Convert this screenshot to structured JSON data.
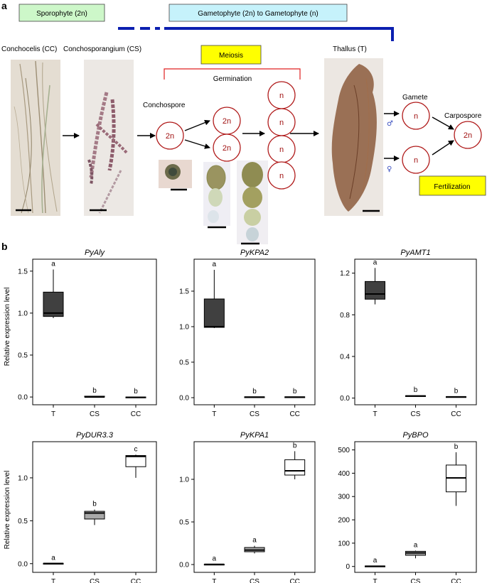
{
  "panel_a": {
    "letter": "a",
    "phase_sporophyte": "Sporophyte (2n)",
    "phase_gametophyte": "Gametophyte (2n) to Gametophyte (n)",
    "label_conchocelis": "Conchocelis (CC)",
    "label_conchosporangium": "Conchosporangium (CS)",
    "label_thallus": "Thallus (T)",
    "label_meiosis": "Meiosis",
    "label_germination": "Germination",
    "label_conchospore": "Conchospore",
    "label_gamete": "Gamete",
    "label_carpospore": "Carpospore",
    "label_fertilization": "Fertilization",
    "cell_2n": "2n",
    "cell_n": "n",
    "male_symbol": "♂",
    "female_symbol": "♀",
    "colors": {
      "sporophyte_box": "#cdf7c9",
      "gametophyte_box": "#c6f2fb",
      "meiosis_box": "#ffff00",
      "timeline": "#0b1fb0",
      "cell_border": "#b01a1a",
      "bracket": "#e02020"
    }
  },
  "panel_b": {
    "letter": "b",
    "ylabel": "Relative expression level",
    "chart_data": [
      {
        "type": "box",
        "title": "PyAly",
        "categories": [
          "T",
          "CS",
          "CC"
        ],
        "ylim": [
          -0.05,
          1.6
        ],
        "yticks": [
          0.0,
          0.5,
          1.0,
          1.5
        ],
        "ytick_labels": [
          "0.0",
          "0.5",
          "1.0",
          "1.5"
        ],
        "boxes": [
          {
            "whisker_low": 0.94,
            "q1": 0.96,
            "median": 1.0,
            "q3": 1.25,
            "whisker_high": 1.52,
            "fill": "#404040",
            "letter": "a"
          },
          {
            "whisker_low": 0.0,
            "q1": 0.0,
            "median": 0.0,
            "q3": 0.01,
            "whisker_high": 0.01,
            "fill": "#a8a8a8",
            "letter": "b"
          },
          {
            "whisker_low": -0.005,
            "q1": -0.005,
            "median": -0.003,
            "q3": 0.0,
            "whisker_high": 0.0,
            "fill": "#ffffff",
            "letter": "b"
          }
        ]
      },
      {
        "type": "box",
        "title": "PyKPA2",
        "categories": [
          "T",
          "CS",
          "CC"
        ],
        "ylim": [
          -0.05,
          1.9
        ],
        "yticks": [
          0.0,
          0.5,
          1.0,
          1.5
        ],
        "ytick_labels": [
          "0.0",
          "0.5",
          "1.0",
          "1.5"
        ],
        "boxes": [
          {
            "whisker_low": 0.98,
            "q1": 0.99,
            "median": 1.0,
            "q3": 1.39,
            "whisker_high": 1.8,
            "fill": "#404040",
            "letter": "a"
          },
          {
            "whisker_low": 0.005,
            "q1": 0.005,
            "median": 0.008,
            "q3": 0.012,
            "whisker_high": 0.012,
            "fill": "#a8a8a8",
            "letter": "b"
          },
          {
            "whisker_low": 0.005,
            "q1": 0.005,
            "median": 0.008,
            "q3": 0.012,
            "whisker_high": 0.012,
            "fill": "#ffffff",
            "letter": "b"
          }
        ]
      },
      {
        "type": "box",
        "title": "PyAMT1",
        "categories": [
          "T",
          "CS",
          "CC"
        ],
        "ylim": [
          -0.03,
          1.3
        ],
        "yticks": [
          0.0,
          0.4,
          0.8,
          1.2
        ],
        "ytick_labels": [
          "0.0",
          "0.4",
          "0.8",
          "1.2"
        ],
        "boxes": [
          {
            "whisker_low": 0.9,
            "q1": 0.95,
            "median": 1.0,
            "q3": 1.12,
            "whisker_high": 1.25,
            "fill": "#404040",
            "letter": "a"
          },
          {
            "whisker_low": 0.018,
            "q1": 0.018,
            "median": 0.02,
            "q3": 0.023,
            "whisker_high": 0.023,
            "fill": "#a8a8a8",
            "letter": "b"
          },
          {
            "whisker_low": 0.01,
            "q1": 0.01,
            "median": 0.012,
            "q3": 0.014,
            "whisker_high": 0.014,
            "fill": "#ffffff",
            "letter": "b"
          }
        ]
      },
      {
        "type": "box",
        "title": "PyDUR3.3",
        "categories": [
          "T",
          "CS",
          "CC"
        ],
        "ylim": [
          -0.06,
          1.38
        ],
        "yticks": [
          0.0,
          0.5,
          1.0
        ],
        "ytick_labels": [
          "0.0",
          "0.5",
          "1.0"
        ],
        "boxes": [
          {
            "whisker_low": 0.0,
            "q1": 0.0,
            "median": 0.002,
            "q3": 0.004,
            "whisker_high": 0.004,
            "fill": "#404040",
            "letter": "a"
          },
          {
            "whisker_low": 0.45,
            "q1": 0.52,
            "median": 0.59,
            "q3": 0.61,
            "whisker_high": 0.63,
            "fill": "#a8a8a8",
            "letter": "b"
          },
          {
            "whisker_low": 1.0,
            "q1": 1.13,
            "median": 1.25,
            "q3": 1.26,
            "whisker_high": 1.27,
            "fill": "#ffffff",
            "letter": "c"
          }
        ]
      },
      {
        "type": "box",
        "title": "PyKPA1",
        "categories": [
          "T",
          "CS",
          "CC"
        ],
        "ylim": [
          -0.05,
          1.4
        ],
        "yticks": [
          0.0,
          0.5,
          1.0
        ],
        "ytick_labels": [
          "0.0",
          "0.5",
          "1.0"
        ],
        "boxes": [
          {
            "whisker_low": 0.0,
            "q1": 0.0,
            "median": 0.002,
            "q3": 0.004,
            "whisker_high": 0.004,
            "fill": "#404040",
            "letter": "a"
          },
          {
            "whisker_low": 0.13,
            "q1": 0.15,
            "median": 0.17,
            "q3": 0.2,
            "whisker_high": 0.22,
            "fill": "#a8a8a8",
            "letter": "a"
          },
          {
            "whisker_low": 1.0,
            "q1": 1.05,
            "median": 1.1,
            "q3": 1.23,
            "whisker_high": 1.33,
            "fill": "#ffffff",
            "letter": "b"
          }
        ]
      },
      {
        "type": "box",
        "title": "PyBPO",
        "categories": [
          "T",
          "CS",
          "CC"
        ],
        "ylim": [
          -10,
          520
        ],
        "yticks": [
          0,
          100,
          200,
          300,
          400,
          500
        ],
        "ytick_labels": [
          "0",
          "100",
          "200",
          "300",
          "400",
          "500"
        ],
        "boxes": [
          {
            "whisker_low": 0.0,
            "q1": 0.0,
            "median": 1.0,
            "q3": 2.0,
            "whisker_high": 2.0,
            "fill": "#404040",
            "letter": "a"
          },
          {
            "whisker_low": 35,
            "q1": 48,
            "median": 58,
            "q3": 65,
            "whisker_high": 68,
            "fill": "#a8a8a8",
            "letter": "a"
          },
          {
            "whisker_low": 260,
            "q1": 320,
            "median": 380,
            "q3": 435,
            "whisker_high": 490,
            "fill": "#ffffff",
            "letter": "b"
          }
        ]
      }
    ]
  }
}
